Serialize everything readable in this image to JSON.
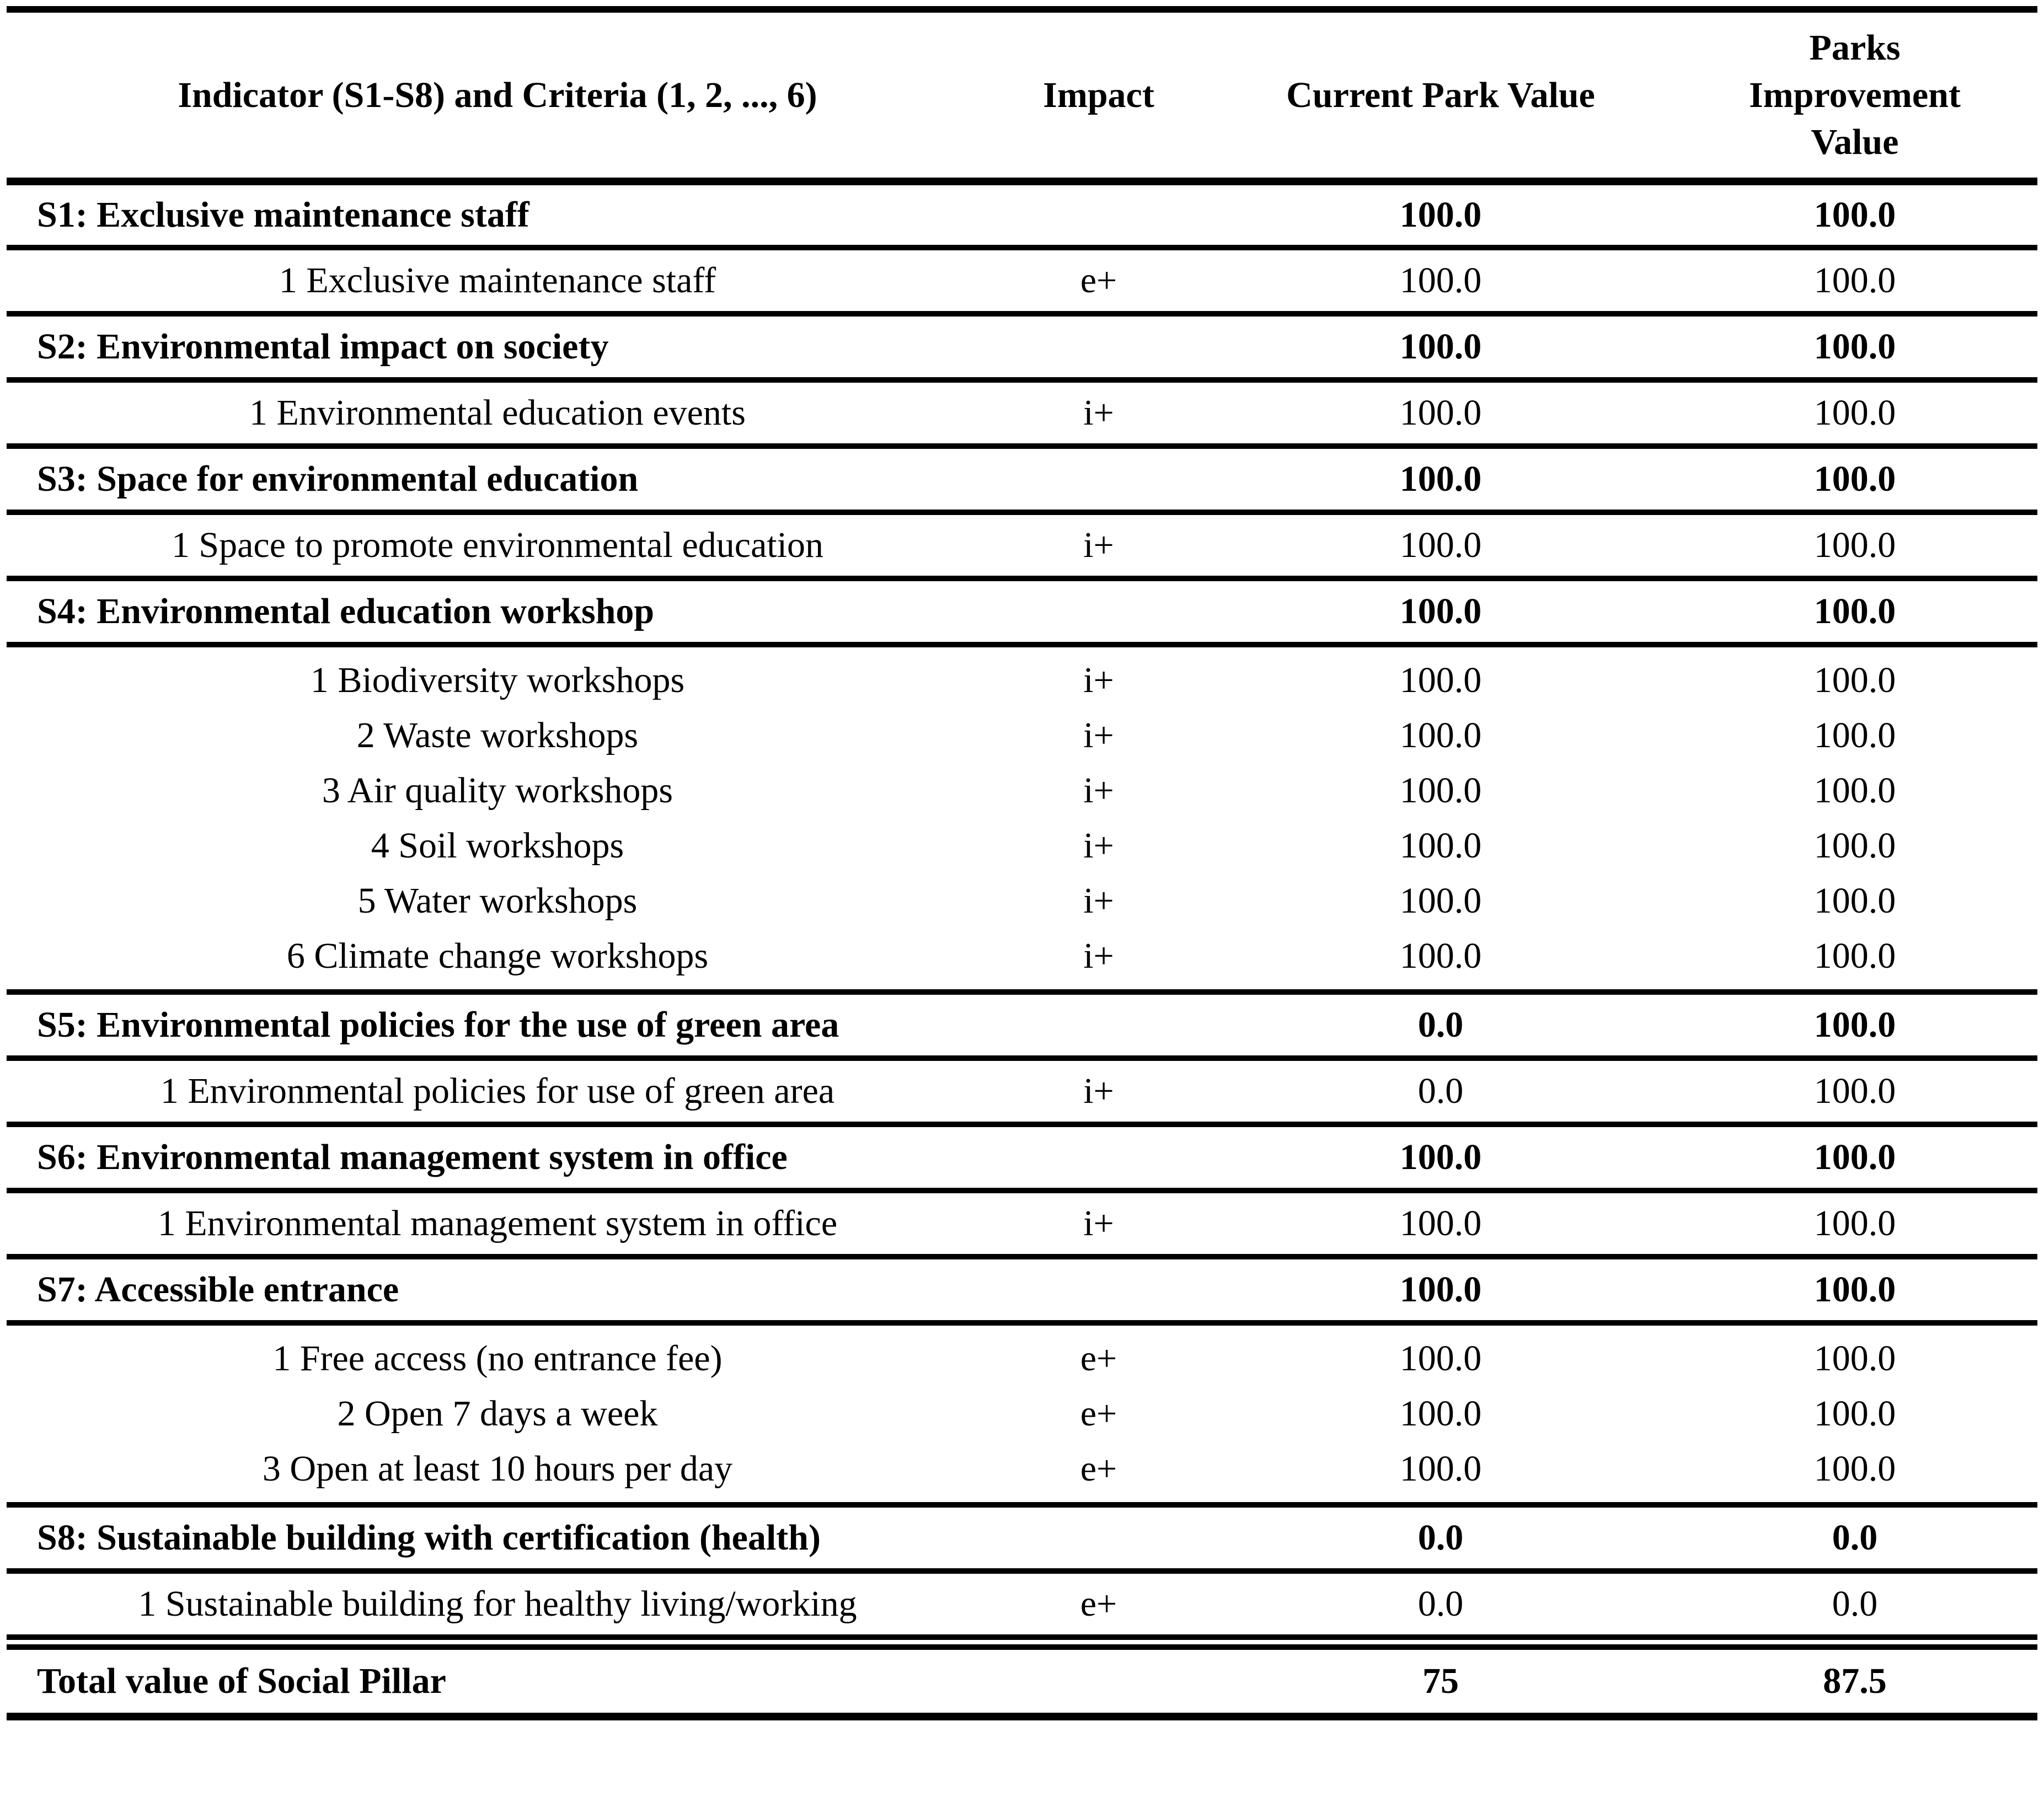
{
  "table": {
    "header": {
      "indicator": "Indicator (S1-S8) and Criteria (1, 2, ..., 6)",
      "impact": "Impact",
      "current": "Current Park Value",
      "improvement": "Parks Improvement Value"
    },
    "sections": [
      {
        "id": "s1",
        "indicator": "S1: Exclusive maintenance staff",
        "current": "100.0",
        "improvement": "100.0",
        "criteria": [
          {
            "label": "1 Exclusive maintenance staff",
            "impact": "e+",
            "current": "100.0",
            "improvement": "100.0"
          }
        ]
      },
      {
        "id": "s2",
        "indicator": "S2: Environmental impact on society",
        "current": "100.0",
        "improvement": "100.0",
        "criteria": [
          {
            "label": "1 Environmental education events",
            "impact": "i+",
            "current": "100.0",
            "improvement": "100.0"
          }
        ]
      },
      {
        "id": "s3",
        "indicator": "S3: Space for environmental education",
        "current": "100.0",
        "improvement": "100.0",
        "criteria": [
          {
            "label": "1 Space to promote environmental education",
            "impact": "i+",
            "current": "100.0",
            "improvement": "100.0"
          }
        ]
      },
      {
        "id": "s4",
        "indicator": "S4: Environmental education workshop",
        "current": "100.0",
        "improvement": "100.0",
        "criteria": [
          {
            "label": "1 Biodiversity workshops",
            "impact": "i+",
            "current": "100.0",
            "improvement": "100.0"
          },
          {
            "label": "2 Waste workshops",
            "impact": "i+",
            "current": "100.0",
            "improvement": "100.0"
          },
          {
            "label": "3 Air quality workshops",
            "impact": "i+",
            "current": "100.0",
            "improvement": "100.0"
          },
          {
            "label": "4 Soil workshops",
            "impact": "i+",
            "current": "100.0",
            "improvement": "100.0"
          },
          {
            "label": "5 Water workshops",
            "impact": "i+",
            "current": "100.0",
            "improvement": "100.0"
          },
          {
            "label": "6 Climate change workshops",
            "impact": "i+",
            "current": "100.0",
            "improvement": "100.0"
          }
        ]
      },
      {
        "id": "s5",
        "indicator": "S5: Environmental policies for the use of green area",
        "current": "0.0",
        "improvement": "100.0",
        "criteria": [
          {
            "label": "1 Environmental policies for use of green area",
            "impact": "i+",
            "current": "0.0",
            "improvement": "100.0"
          }
        ]
      },
      {
        "id": "s6",
        "indicator": "S6: Environmental management system in office",
        "current": "100.0",
        "improvement": "100.0",
        "criteria": [
          {
            "label": "1 Environmental management system in office",
            "impact": "i+",
            "current": "100.0",
            "improvement": "100.0"
          }
        ]
      },
      {
        "id": "s7",
        "indicator": "S7: Accessible entrance",
        "current": "100.0",
        "improvement": "100.0",
        "criteria": [
          {
            "label": "1 Free access (no entrance fee)",
            "impact": "e+",
            "current": "100.0",
            "improvement": "100.0"
          },
          {
            "label": "2 Open 7 days a week",
            "impact": "e+",
            "current": "100.0",
            "improvement": "100.0"
          },
          {
            "label": "3 Open at least 10 hours per day",
            "impact": "e+",
            "current": "100.0",
            "improvement": "100.0"
          }
        ]
      },
      {
        "id": "s8",
        "indicator": "S8: Sustainable building with certification (health)",
        "current": "0.0",
        "improvement": "0.0",
        "criteria": [
          {
            "label": "1 Sustainable building for healthy living/working",
            "impact": "e+",
            "current": "0.0",
            "improvement": "0.0"
          }
        ]
      }
    ],
    "total": {
      "label": "Total value of Social Pillar",
      "current": "75",
      "improvement": "87.5"
    }
  }
}
